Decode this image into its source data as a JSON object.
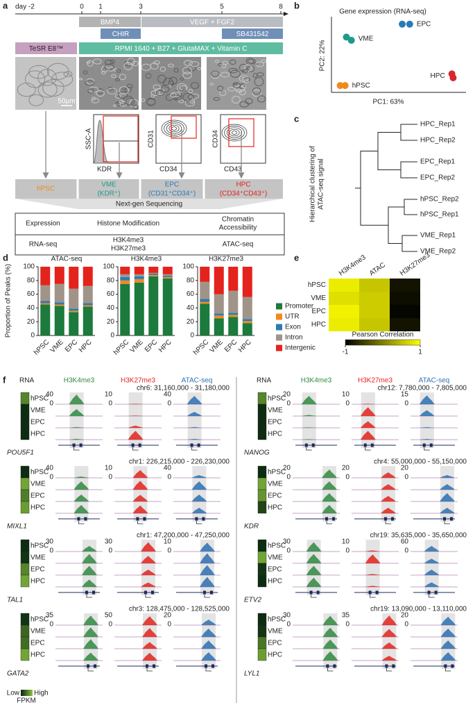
{
  "panel_labels": [
    "a",
    "b",
    "c",
    "d",
    "e",
    "f"
  ],
  "panel_a": {
    "timeline": [
      "day -2",
      "0",
      "1",
      "3",
      "5",
      "8"
    ],
    "factors": [
      "BMP4",
      "VEGF + FGF2",
      "CHIR",
      "SB431542"
    ],
    "media": [
      "TeSR E8™",
      "RPMI 1640 + B27 + GlutaMAX + Vitamin C"
    ],
    "scale_bar": "50µm",
    "flow_axes": [
      [
        "SSC-A",
        "KDR"
      ],
      [
        "CD31",
        "CD34"
      ],
      [
        "CD34",
        "CD43"
      ]
    ],
    "stages": [
      {
        "name": "hPSC",
        "color": "#f08a1c"
      },
      {
        "name": "VME",
        "marker": "(KDR⁺)",
        "color": "#1e9a8a"
      },
      {
        "name": "EPC",
        "marker": "(CD31⁺CD34⁺)",
        "color": "#2a7ab8"
      },
      {
        "name": "HPC",
        "marker": "(CD34⁺CD43⁺)",
        "color": "#e3231c"
      }
    ],
    "sequencing": "Next-gen Sequencing",
    "table": {
      "header": [
        [
          "Expression"
        ],
        [
          "Histone Modification"
        ],
        [
          "Chromatin",
          "Accessibility"
        ]
      ],
      "rows": [
        [
          [
            "RNA-seq"
          ],
          [
            "H3K4me3",
            "H3K27me3"
          ],
          [
            "ATAC-seq"
          ]
        ]
      ]
    }
  },
  "panel_c": {
    "ylabel": [
      "Hierarchical clustering of",
      "ATAC-seq signal"
    ],
    "leaves": [
      "HPC_Rep1",
      "HPC_Rep2",
      "EPC_Rep1",
      "EPC_Rep2",
      "hPSC_Rep2",
      "hPSC_Rep1",
      "VME_Rep1",
      "VME_Rep2"
    ]
  },
  "chart_data": [
    {
      "type": "scatter",
      "title": "Gene expression (RNA-seq)",
      "xlabel": "PC1: 63%",
      "ylabel": "PC2: 22%",
      "xlim": [
        0,
        100
      ],
      "ylim": [
        0,
        100
      ],
      "series": [
        {
          "name": "EPC",
          "color": "#2a7ab8",
          "x": [
            52,
            58
          ],
          "y": [
            97,
            97
          ]
        },
        {
          "name": "VME",
          "color": "#1e9a8a",
          "x": [
            7,
            11
          ],
          "y": [
            77,
            72
          ]
        },
        {
          "name": "HPC",
          "color": "#d7262b",
          "x": [
            92,
            93
          ],
          "y": [
            20,
            14
          ]
        },
        {
          "name": "hPSC",
          "color": "#f08a1c",
          "x": [
            2,
            6
          ],
          "y": [
            2,
            2
          ]
        }
      ]
    },
    {
      "type": "bar",
      "stacked": true,
      "ylabel": "Proportion of Peaks (%)",
      "facets": [
        "ATAC-seq",
        "H3K4me3",
        "H3K27me3"
      ],
      "categories": [
        "hPSC",
        "VME",
        "EPC",
        "HPC"
      ],
      "ylim": [
        0,
        100
      ],
      "yticks": [
        0,
        20,
        40,
        60,
        80,
        100
      ],
      "series": [
        {
          "name": "Promoter",
          "color": "#1b7a3c",
          "values": [
            [
              45,
              43,
              34,
              42
            ],
            [
              75,
              77,
              86,
              83
            ],
            [
              46,
              25,
              27,
              18
            ]
          ]
        },
        {
          "name": "UTR",
          "color": "#f08a1c",
          "values": [
            [
              2,
              2,
              2,
              2
            ],
            [
              5,
              5,
              2,
              2
            ],
            [
              3,
              4,
              3,
              3
            ]
          ]
        },
        {
          "name": "Exon",
          "color": "#2a7ab8",
          "values": [
            [
              3,
              3,
              3,
              3
            ],
            [
              5,
              4,
              2,
              2
            ],
            [
              4,
              3,
              3,
              3
            ]
          ]
        },
        {
          "name": "Intron",
          "color": "#a09488",
          "values": [
            [
              23,
              27,
              29,
              25
            ],
            [
              4,
              3,
              1,
              2
            ],
            [
              25,
              28,
              32,
              32
            ]
          ]
        },
        {
          "name": "Intergenic",
          "color": "#e3231c",
          "values": [
            [
              27,
              25,
              32,
              28
            ],
            [
              11,
              11,
              9,
              11
            ],
            [
              22,
              40,
              35,
              44
            ]
          ]
        }
      ]
    },
    {
      "type": "heatmap",
      "categories": [
        "H3K4me3",
        "ATAC",
        "H3K27me3"
      ],
      "rows": [
        "hPSC",
        "VME",
        "EPC",
        "HPC"
      ],
      "values": [
        [
          0.85,
          0.55,
          -0.85
        ],
        [
          0.75,
          0.6,
          -0.9
        ],
        [
          0.9,
          0.6,
          -0.95
        ],
        [
          0.85,
          0.55,
          -0.85
        ]
      ],
      "colorbar": {
        "label": "Pearson Correlation",
        "lim": [
          -1,
          1
        ],
        "ticks": [
          -1,
          1
        ],
        "colors": [
          "#000000",
          "#ffff00"
        ]
      }
    }
  ],
  "panel_f": {
    "columns": [
      "RNA",
      "H3K4me3",
      "H3K27me3",
      "ATAC-seq"
    ],
    "rows": [
      "hPSC",
      "VME",
      "EPC",
      "HPC"
    ],
    "track_colors": [
      "#2f8a3e",
      "#e3231c",
      "#2b70b3"
    ],
    "rna_colors": [
      "#06240f",
      "#8cc63e"
    ],
    "legend": {
      "low": "Low",
      "high": "High",
      "label": "FPKM"
    },
    "genes": [
      {
        "name": "POU5F1",
        "locus": "chr6: 31,160,000 - 31,180,000",
        "rna": [
          0.6,
          0.05,
          0.05,
          0.05
        ],
        "tracks": [
          {
            "ylim": [
              0,
              40
            ],
            "yticks": [
              0,
              40
            ],
            "values": [
              35,
              25,
              3,
              3
            ]
          },
          {
            "ylim": [
              0,
              10
            ],
            "yticks": [
              0,
              10
            ],
            "values": [
              0.5,
              0.5,
              2,
              8
            ]
          },
          {
            "ylim": [
              0,
              40
            ],
            "yticks": [
              0,
              40
            ],
            "values": [
              30,
              15,
              3,
              3
            ]
          }
        ]
      },
      {
        "name": "MIXL1",
        "locus": "chr1: 226,215,000 - 226,230,000",
        "rna": [
          0.05,
          0.8,
          0.55,
          0.75
        ],
        "tracks": [
          {
            "ylim": [
              0,
              40
            ],
            "yticks": [
              0,
              40
            ],
            "values": [
              5,
              30,
              25,
              30
            ]
          },
          {
            "ylim": [
              0,
              10
            ],
            "yticks": [
              0,
              10
            ],
            "values": [
              7,
              8,
              6,
              7
            ]
          },
          {
            "ylim": [
              0,
              40
            ],
            "yticks": [
              0,
              40
            ],
            "values": [
              10,
              30,
              25,
              20
            ]
          }
        ]
      },
      {
        "name": "TAL1",
        "locus": "chr1: 47,200,000 - 47,250,000",
        "rna": [
          0.05,
          0.1,
          0.6,
          0.8
        ],
        "tracks": [
          {
            "ylim": [
              0,
              30
            ],
            "yticks": [
              0,
              30
            ],
            "values": [
              15,
              25,
              25,
              20
            ]
          },
          {
            "ylim": [
              0,
              30
            ],
            "yticks": [
              0,
              30
            ],
            "values": [
              25,
              20,
              15,
              12
            ]
          },
          {
            "ylim": [
              0,
              10
            ],
            "yticks": [
              0,
              10
            ],
            "values": [
              8,
              9,
              9,
              9
            ]
          }
        ]
      },
      {
        "name": "GATA2",
        "locus": "chr3: 128,475,000 - 128,525,000",
        "rna": [
          0.1,
          0.4,
          0.45,
          0.8
        ],
        "tracks": [
          {
            "ylim": [
              0,
              35
            ],
            "yticks": [
              0,
              35
            ],
            "values": [
              30,
              30,
              30,
              25
            ]
          },
          {
            "ylim": [
              0,
              50
            ],
            "yticks": [
              0,
              50
            ],
            "values": [
              40,
              40,
              30,
              35
            ]
          },
          {
            "ylim": [
              0,
              20
            ],
            "yticks": [
              0,
              20
            ],
            "values": [
              10,
              15,
              15,
              15
            ]
          }
        ]
      },
      {
        "name": "NANOG",
        "locus": "chr12: 7,780,000 - 7,805,000",
        "rna": [
          0.6,
          0.05,
          0.05,
          0.05
        ],
        "tracks": [
          {
            "ylim": [
              0,
              20
            ],
            "yticks": [
              0,
              20
            ],
            "values": [
              15,
              2,
              1,
              1
            ]
          },
          {
            "ylim": [
              0,
              10
            ],
            "yticks": [
              0,
              10
            ],
            "values": [
              0.5,
              8,
              6,
              8
            ]
          },
          {
            "ylim": [
              0,
              15
            ],
            "yticks": [
              0,
              15
            ],
            "values": [
              12,
              8,
              1,
              1
            ]
          }
        ]
      },
      {
        "name": "KDR",
        "locus": "chr4: 55,000,000 - 55,150,000",
        "rna": [
          0.05,
          0.8,
          0.7,
          0.2
        ],
        "tracks": [
          {
            "ylim": [
              0,
              20
            ],
            "yticks": [
              0,
              20
            ],
            "values": [
              15,
              15,
              15,
              15
            ]
          },
          {
            "ylim": [
              0,
              20
            ],
            "yticks": [
              0,
              20
            ],
            "values": [
              10,
              10,
              10,
              10
            ]
          },
          {
            "ylim": [
              0,
              20
            ],
            "yticks": [
              0,
              20
            ],
            "values": [
              5,
              10,
              15,
              10
            ]
          }
        ]
      },
      {
        "name": "ETV2",
        "locus": "chr19: 35,635,000 - 35,650,000",
        "rna": [
          0.05,
          0.8,
          0.1,
          0.05
        ],
        "tracks": [
          {
            "ylim": [
              0,
              30
            ],
            "yticks": [
              0,
              30
            ],
            "values": [
              25,
              25,
              25,
              25
            ]
          },
          {
            "ylim": [
              0,
              10
            ],
            "yticks": [
              0,
              10
            ],
            "values": [
              1,
              8,
              1,
              1
            ]
          },
          {
            "ylim": [
              0,
              60
            ],
            "yticks": [
              0,
              60
            ],
            "values": [
              30,
              25,
              30,
              25
            ]
          }
        ]
      },
      {
        "name": "LYL1",
        "locus": "chr19: 13,090,000 - 13,110,000",
        "rna": [
          0.05,
          0.1,
          0.5,
          0.75
        ],
        "tracks": [
          {
            "ylim": [
              0,
              30
            ],
            "yticks": [
              0,
              30
            ],
            "values": [
              25,
              25,
              25,
              25
            ]
          },
          {
            "ylim": [
              0,
              35
            ],
            "yticks": [
              0,
              35
            ],
            "values": [
              30,
              25,
              20,
              15
            ]
          },
          {
            "ylim": [
              0,
              20
            ],
            "yticks": [
              0,
              20
            ],
            "values": [
              15,
              15,
              15,
              15
            ]
          }
        ]
      }
    ]
  }
}
